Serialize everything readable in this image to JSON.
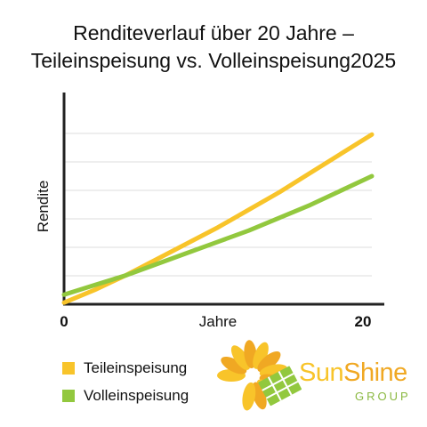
{
  "title_line1": "Renditeverlauf über 20 Jahre –",
  "title_line2": "Teileinspeisung vs. Volleinspeisung2025",
  "chart_data": {
    "type": "line",
    "xlabel": "Jahre",
    "ylabel": "Rendite",
    "x_ticks": [
      "0",
      "20"
    ],
    "xlim": [
      0,
      20
    ],
    "ylim": [
      0,
      10
    ],
    "grid": true,
    "legend_position": "bottom-left",
    "series": [
      {
        "name": "Teileinspeisung",
        "color": "#f8c42a",
        "x": [
          0,
          2,
          4,
          6,
          8,
          10,
          12,
          14,
          16,
          18,
          20
        ],
        "y": [
          0.1,
          0.9,
          1.8,
          2.8,
          3.8,
          4.8,
          5.9,
          7.0,
          8.2,
          9.4,
          10.6
        ]
      },
      {
        "name": "Volleinspeisung",
        "color": "#92c83e",
        "x": [
          0,
          2,
          4,
          6,
          8,
          10,
          12,
          14,
          16,
          18,
          20
        ],
        "y": [
          0.6,
          1.2,
          1.8,
          2.5,
          3.2,
          3.9,
          4.6,
          5.4,
          6.2,
          7.1,
          8.0
        ]
      }
    ]
  },
  "logo": {
    "brand_sun": "Sun",
    "brand_shine": "Shine",
    "brand_sub": "GROUP",
    "colors": {
      "sun": "#f8c42a",
      "shine": "#f0a823",
      "leaf": "#92c83e"
    }
  }
}
